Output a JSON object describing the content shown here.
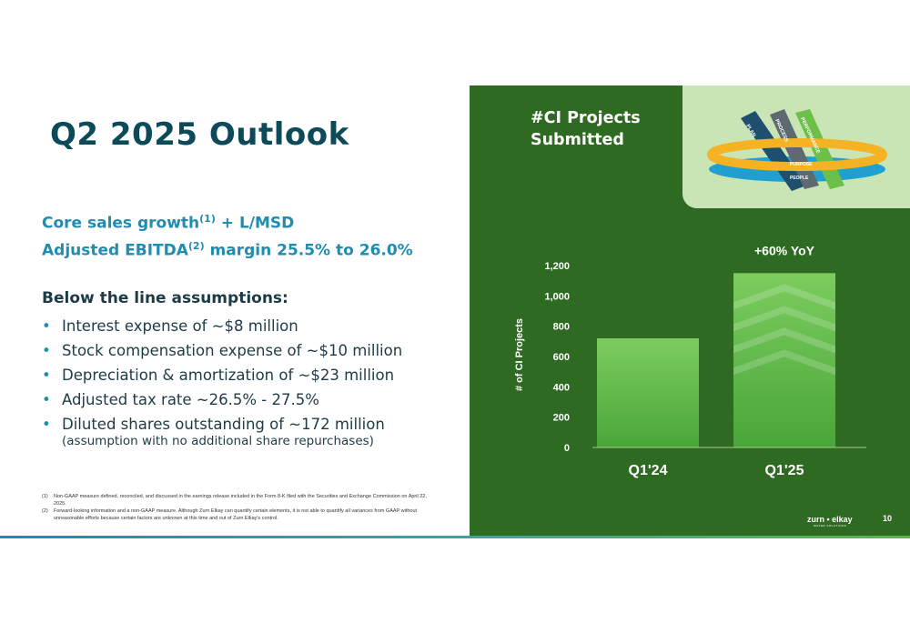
{
  "title": "Q2 2025 Outlook",
  "highlights": {
    "core_sales": "Core sales growth",
    "core_sales_sup": "(1)",
    "core_sales_value": " + L/MSD",
    "ebitda": "Adjusted EBITDA",
    "ebitda_sup": "(2)",
    "ebitda_value": " margin 25.5% to 26.0%"
  },
  "assumptions": {
    "heading": "Below the line assumptions:",
    "bullet": "•",
    "items": [
      "Interest expense of ~$8 million",
      "Stock compensation expense of ~$10 million",
      "Depreciation & amortization of ~$23 million",
      "Adjusted tax rate ~26.5% - 27.5%",
      "Diluted shares outstanding of ~172 million"
    ],
    "last_item_note": "(assumption with no additional share repurchases)"
  },
  "footnotes": [
    {
      "num": "(1)",
      "text": "Non-GAAP measure defined, reconciled, and discussed in the earnings release included in the Form 8-K filed with the Securities and Exchange Commission on April 22, 2025."
    },
    {
      "num": "(2)",
      "text": "Forward-looking information and a non-GAAP measure.  Although Zurn Elkay can quantify certain elements, it is not able to quantify all variances from GAAP without unreasonable efforts because certain factors are unknown at this time and out of Zurn Elkay's control."
    }
  ],
  "chart_title_line1": "#CI Projects",
  "chart_title_line2": "Submitted",
  "graphic_labels": {
    "plan": "PLAN",
    "process": "PROCESS",
    "performance": "PERFORMANCE",
    "purpose": "PURPOSE",
    "people": "PEOPLE"
  },
  "chart_data": {
    "type": "bar",
    "title": "#CI Projects Submitted",
    "categories": [
      "Q1'24",
      "Q1'25"
    ],
    "values": [
      720,
      1150
    ],
    "ylabel": "# of CI Projects",
    "xlabel": "",
    "ylim": [
      0,
      1200
    ],
    "yticks": [
      0,
      200,
      400,
      600,
      800,
      1000,
      1200
    ],
    "ytick_labels": [
      "0",
      "200",
      "400",
      "600",
      "800",
      "1,000",
      "1,200"
    ],
    "annotation": "+60%  YoY",
    "grid": false,
    "bar_color": "#5bb547"
  },
  "colors": {
    "dark_green": "#2f6a23",
    "light_green": "#c9e5b6",
    "teal": "#1f8cb0",
    "navy": "#0c4a5a",
    "bar_green": "#5bb547"
  },
  "logo": {
    "name": "zurn • elkay",
    "tagline": "WATER SOLUTIONS"
  },
  "page_number": "10"
}
